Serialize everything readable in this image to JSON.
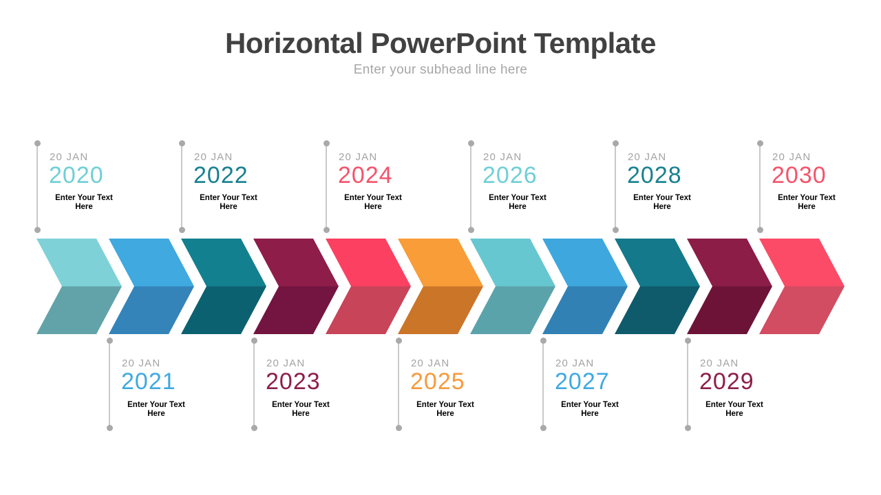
{
  "header": {
    "title": "Horizontal PowerPoint Template",
    "subtitle": "Enter your subhead line here"
  },
  "timeline": {
    "date_label": "20 JAN",
    "placeholder_line1": "Enter Your Text",
    "placeholder_line2": "Here",
    "items": [
      {
        "year": "2020",
        "row": "top",
        "year_color": "#6FCFD6",
        "arrow_top": "#7ED2D7",
        "arrow_bottom": "#61A3A8"
      },
      {
        "year": "2021",
        "row": "bottom",
        "year_color": "#3FA9E1",
        "arrow_top": "#3FA9E0",
        "arrow_bottom": "#3484BA"
      },
      {
        "year": "2022",
        "row": "top",
        "year_color": "#17808F",
        "arrow_top": "#13808F",
        "arrow_bottom": "#0C6170"
      },
      {
        "year": "2023",
        "row": "bottom",
        "year_color": "#8E1D49",
        "arrow_top": "#8E1D49",
        "arrow_bottom": "#731540"
      },
      {
        "year": "2024",
        "row": "top",
        "year_color": "#F4536B",
        "arrow_top": "#FC4061",
        "arrow_bottom": "#C84459"
      },
      {
        "year": "2025",
        "row": "bottom",
        "year_color": "#F89A3C",
        "arrow_top": "#F89D38",
        "arrow_bottom": "#CB7529"
      },
      {
        "year": "2026",
        "row": "top",
        "year_color": "#6FCFD6",
        "arrow_top": "#66C7D0",
        "arrow_bottom": "#5BA3AB"
      },
      {
        "year": "2027",
        "row": "bottom",
        "year_color": "#3FA9E1",
        "arrow_top": "#3EA7DE",
        "arrow_bottom": "#3181B5"
      },
      {
        "year": "2028",
        "row": "top",
        "year_color": "#17808F",
        "arrow_top": "#14798A",
        "arrow_bottom": "#0F5B6B"
      },
      {
        "year": "2029",
        "row": "bottom",
        "year_color": "#8E1D49",
        "arrow_top": "#8C1D47",
        "arrow_bottom": "#6D1338"
      },
      {
        "year": "2030",
        "row": "top",
        "year_color": "#F4536B",
        "arrow_top": "#FB4B66",
        "arrow_bottom": "#D24C62"
      }
    ]
  },
  "style": {
    "background": "#FFFFFF",
    "title_color": "#414141",
    "subtitle_color": "#A6A6A6",
    "date_color": "#A3A3A3",
    "body_color": "#000000",
    "line_color": "#C9C9C9",
    "dot_color": "#A9A9A9"
  }
}
